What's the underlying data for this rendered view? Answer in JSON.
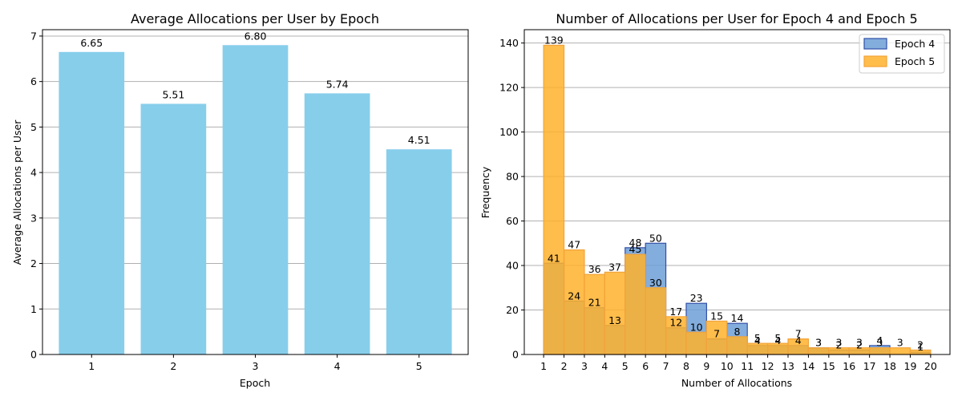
{
  "colors": {
    "bar": "#87ceeb",
    "epoch4_fill": "#6d9fd6",
    "epoch4_edge": "#3350a8",
    "epoch5_fill": "#ffb12c",
    "epoch5_edge": "#f2a33a",
    "grid": "#b0b0b0"
  },
  "chart_data": [
    {
      "type": "bar",
      "title": "Average Allocations per User by Epoch",
      "xlabel": "Epoch",
      "ylabel": "Average Allocations per User",
      "categories": [
        "1",
        "2",
        "3",
        "4",
        "5"
      ],
      "values": [
        6.65,
        5.51,
        6.8,
        5.74,
        4.51
      ],
      "value_labels": [
        "6.65",
        "5.51",
        "6.80",
        "5.74",
        "4.51"
      ],
      "ylim": [
        0,
        7.14
      ],
      "yticks": [
        0,
        1,
        2,
        3,
        4,
        5,
        6,
        7
      ],
      "grid": "y",
      "color": "bar"
    },
    {
      "type": "bar",
      "subtype": "histogram",
      "title": "Number of Allocations per User for Epoch 4 and Epoch 5",
      "xlabel": "Number of Allocations",
      "ylabel": "Frequency",
      "xlim": [
        0.05,
        20.95
      ],
      "ylim": [
        0,
        146
      ],
      "xticks": [
        1,
        2,
        3,
        4,
        5,
        6,
        7,
        8,
        9,
        10,
        11,
        12,
        13,
        14,
        15,
        16,
        17,
        18,
        19,
        20
      ],
      "yticks": [
        0,
        20,
        40,
        60,
        80,
        100,
        120,
        140
      ],
      "bin_edges": [
        1,
        2,
        3,
        4,
        5,
        6,
        7,
        8,
        9,
        10,
        11,
        12,
        13,
        14,
        15,
        16,
        17,
        18,
        19,
        20
      ],
      "grid": "y",
      "legend_position": "top-right",
      "series": [
        {
          "name": "Epoch 4",
          "values": [
            41,
            24,
            21,
            13,
            48,
            50,
            12,
            23,
            7,
            14,
            4,
            4,
            4,
            3,
            2,
            2,
            4,
            0,
            1
          ],
          "labels": [
            "41",
            "24",
            "21",
            "13",
            "48",
            "50",
            "12",
            "23",
            "7",
            "14",
            "4",
            "4",
            "4",
            "3",
            "2",
            "2",
            "4",
            "",
            "1"
          ]
        },
        {
          "name": "Epoch 5",
          "values": [
            139,
            47,
            36,
            37,
            45,
            30,
            17,
            10,
            15,
            8,
            5,
            5,
            7,
            3,
            3,
            3,
            3,
            3,
            2
          ],
          "labels": [
            "139",
            "47",
            "36",
            "37",
            "45",
            "30",
            "17",
            "10",
            "15",
            "8",
            "5",
            "5",
            "7",
            "3",
            "3",
            "3",
            "3",
            "3",
            "2"
          ]
        }
      ]
    }
  ]
}
